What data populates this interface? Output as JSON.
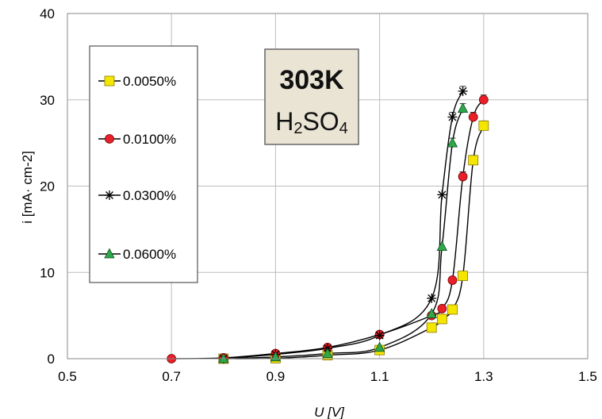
{
  "chart_data": {
    "type": "scatter",
    "title": "",
    "xlabel": "U [V]",
    "ylabel": "i [mA· cm-2]",
    "xlim": [
      0.5,
      1.5
    ],
    "ylim": [
      0,
      40
    ],
    "xticks": [
      "0.5",
      "0.7",
      "0.9",
      "1.1",
      "1.3",
      "1.5"
    ],
    "yticks": [
      "0",
      "10",
      "20",
      "30",
      "40"
    ],
    "grid": true,
    "legend_position": "left",
    "annotation": {
      "line1": "303K",
      "line2_main": "H",
      "line2_sub": "2",
      "line2_tail": "SO",
      "line2_sub2": "4"
    },
    "series": [
      {
        "name": "0.0050%",
        "marker": "square",
        "fill": "#f5e600",
        "x": [
          0.8,
          0.9,
          1.0,
          1.1,
          1.2,
          1.22,
          1.24,
          1.26,
          1.28,
          1.3
        ],
        "y": [
          0.0,
          0.05,
          0.4,
          1.0,
          3.6,
          4.6,
          5.7,
          9.6,
          23.0,
          27.0
        ]
      },
      {
        "name": "0.0100%",
        "marker": "circle",
        "fill": "#e8202a",
        "x": [
          0.7,
          0.8,
          0.9,
          1.0,
          1.1,
          1.2,
          1.22,
          1.24,
          1.26,
          1.28,
          1.3
        ],
        "y": [
          0.0,
          0.1,
          0.6,
          1.3,
          2.8,
          5.0,
          5.8,
          9.1,
          21.1,
          28.0,
          30.0
        ]
      },
      {
        "name": "0.0300%",
        "marker": "star",
        "fill": "#000000",
        "x": [
          0.8,
          0.9,
          1.0,
          1.1,
          1.2,
          1.22,
          1.24,
          1.26
        ],
        "y": [
          0.0,
          0.5,
          1.2,
          2.7,
          7.0,
          19.0,
          28.0,
          31.0
        ]
      },
      {
        "name": "0.0600%",
        "marker": "triangle",
        "fill": "#2ea84a",
        "x": [
          0.8,
          0.9,
          1.0,
          1.1,
          1.2,
          1.22,
          1.24,
          1.26
        ],
        "y": [
          0.0,
          0.2,
          0.6,
          1.3,
          5.2,
          13.0,
          25.0,
          29.0
        ]
      }
    ]
  }
}
